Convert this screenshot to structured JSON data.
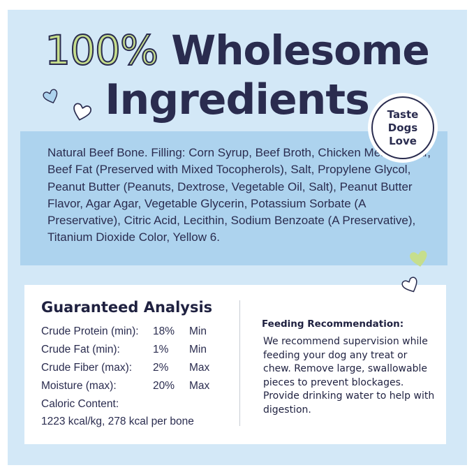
{
  "headline": {
    "highlight": "100%",
    "line1_rest": "Wholesome",
    "line2": "Ingredients"
  },
  "badge": {
    "lines": [
      "Taste",
      "Dogs",
      "Love"
    ]
  },
  "ingredients": "Natural Beef Bone. Filling: Corn Syrup, Beef Broth, Chicken Meal, Sugar, Beef Fat (Preserved with Mixed Tocopherols), Salt, Propylene Glycol, Peanut Butter (Peanuts, Dextrose, Vegetable Oil, Salt), Peanut Butter Flavor, Agar Agar, Vegetable Glycerin, Potassium Sorbate (A Preservative), Citric Acid, Lecithin, Sodium Benzoate (A Preservative), Titanium Dioxide Color, Yellow 6.",
  "analysis": {
    "title": "Guaranteed Analysis",
    "rows": [
      {
        "label": "Crude Protein (min):",
        "value": "18%",
        "qualifier": "Min"
      },
      {
        "label": "Crude Fat (min):",
        "value": "1%",
        "qualifier": "Min"
      },
      {
        "label": "Crude Fiber (max):",
        "value": "2%",
        "qualifier": "Max"
      },
      {
        "label": "Moisture (max):",
        "value": "20%",
        "qualifier": "Max"
      }
    ],
    "caloric_label": "Caloric Content:",
    "caloric_value": "1223 kcal/kg, 278 kcal per bone"
  },
  "feeding": {
    "title": "Feeding Recommendation:",
    "text": "We recommend supervision while feeding your dog any treat or chew. Remove large, swallowable pieces to prevent blockages. Provide drinking water to help with digestion."
  },
  "colors": {
    "navy": "#2a2c4f",
    "green": "#c6de8d",
    "light_blue": "#d3e8f7",
    "mid_blue": "#add3ee"
  },
  "icons": [
    "heart-icon"
  ]
}
